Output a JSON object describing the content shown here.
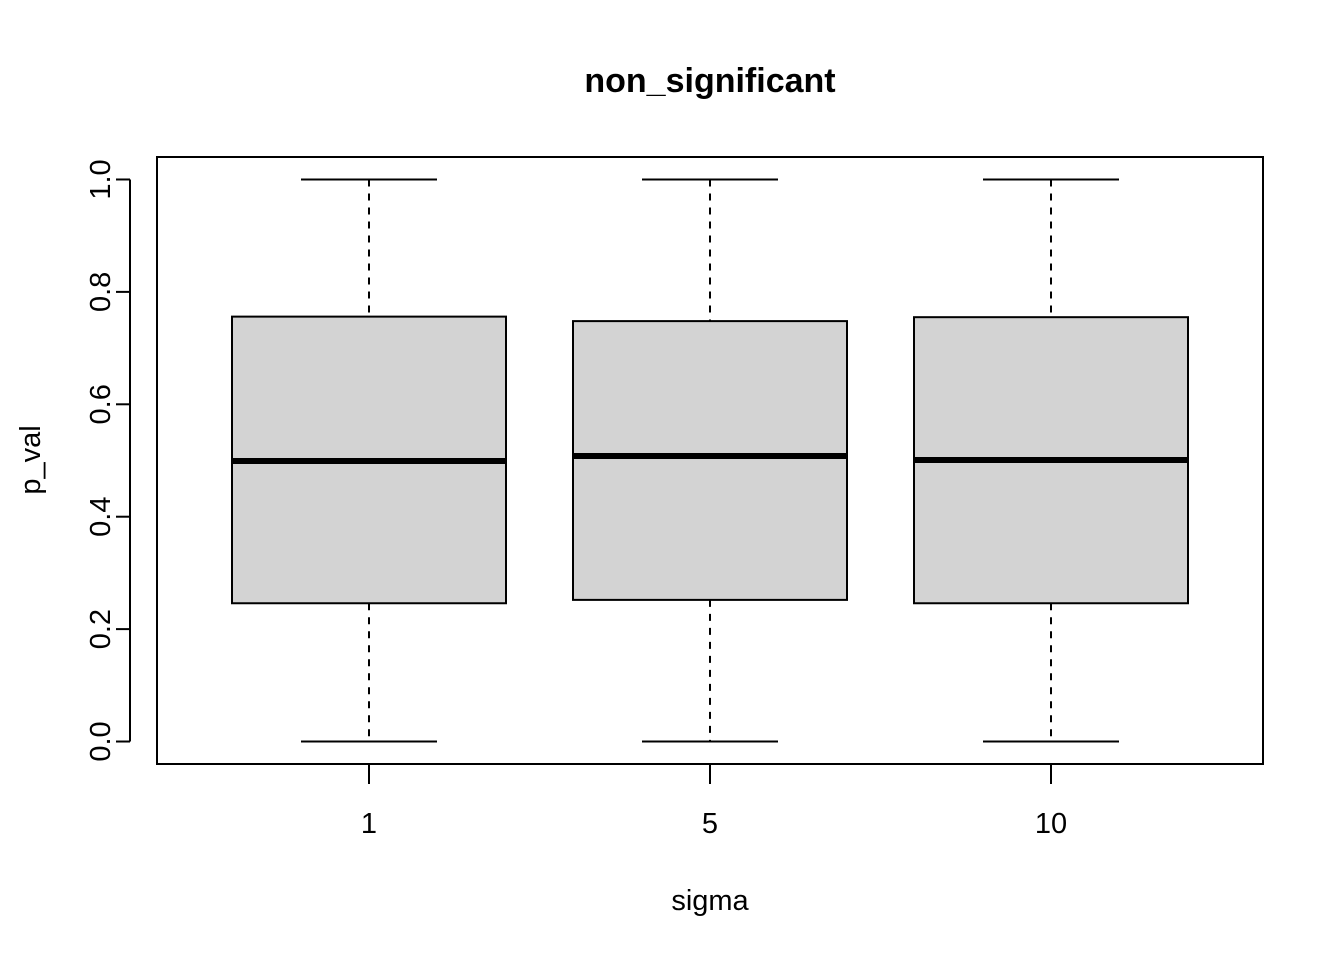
{
  "chart_data": {
    "type": "boxplot",
    "title": "non_significant",
    "xlabel": "sigma",
    "ylabel": "p_val",
    "ylim": [
      -0.04,
      1.04
    ],
    "yticks": [
      "0.0",
      "0.2",
      "0.4",
      "0.6",
      "0.8",
      "1.0"
    ],
    "grid": false,
    "legend": "none",
    "colors": {
      "box_fill": "#d3d3d3",
      "stroke": "#000000"
    },
    "categories": [
      "1",
      "5",
      "10"
    ],
    "boxes": [
      {
        "category": "1",
        "min": 0.0,
        "q1": 0.246,
        "median": 0.499,
        "q3": 0.756,
        "max": 1.0
      },
      {
        "category": "5",
        "min": 0.0,
        "q1": 0.252,
        "median": 0.508,
        "q3": 0.748,
        "max": 1.0
      },
      {
        "category": "10",
        "min": 0.0,
        "q1": 0.246,
        "median": 0.501,
        "q3": 0.755,
        "max": 1.0
      }
    ]
  }
}
